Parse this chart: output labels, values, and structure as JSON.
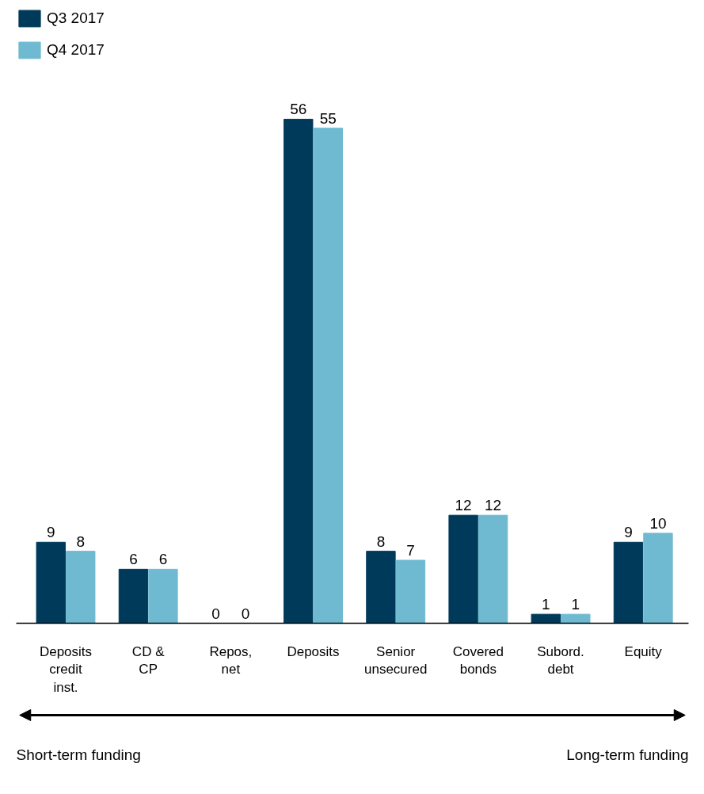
{
  "chart_data": {
    "type": "bar",
    "categories": [
      "Deposits credit inst.",
      "CD & CP",
      "Repos, net",
      "Deposits",
      "Senior unsecured",
      "Covered bonds",
      "Subord. debt",
      "Equity"
    ],
    "series": [
      {
        "name": "Q3 2017",
        "color": "#003a5a",
        "values": [
          9,
          6,
          0,
          56,
          8,
          12,
          1,
          9
        ]
      },
      {
        "name": "Q4 2017",
        "color": "#6fbad0",
        "values": [
          8,
          6,
          0,
          55,
          7,
          12,
          1,
          10
        ]
      }
    ],
    "data_labels": true,
    "legend": "top left",
    "grid": false,
    "tick_labels": "x",
    "annotations": [
      "Short-term funding",
      "Long-term funding"
    ]
  }
}
